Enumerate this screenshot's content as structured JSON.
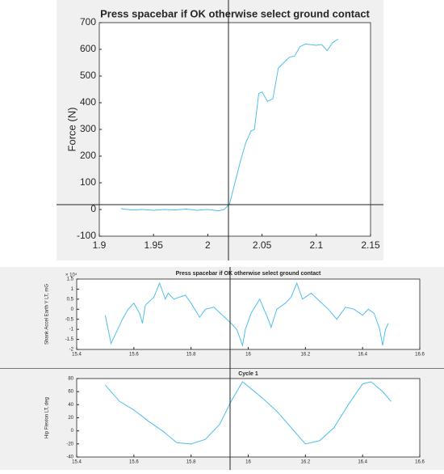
{
  "chart_data": [
    {
      "type": "line",
      "title": "Press spacebar if OK otherwise select ground contact",
      "y_label": "Force (N)",
      "x": [
        1.92,
        1.93,
        1.94,
        1.95,
        1.96,
        1.97,
        1.98,
        1.99,
        2.0,
        2.01,
        2.015,
        2.02,
        2.025,
        2.03,
        2.035,
        2.04,
        2.043,
        2.047,
        2.05,
        2.055,
        2.06,
        2.065,
        2.07,
        2.075,
        2.08,
        2.085,
        2.09,
        2.1,
        2.105,
        2.11,
        2.115,
        2.12
      ],
      "values": [
        3,
        -2,
        0,
        -3,
        0,
        -2,
        2,
        -3,
        0,
        -5,
        0,
        20,
        100,
        180,
        250,
        295,
        300,
        435,
        440,
        405,
        415,
        530,
        550,
        570,
        575,
        610,
        620,
        615,
        618,
        595,
        625,
        638
      ],
      "color": "#4dbeee",
      "xlim": [
        1.9,
        2.15
      ],
      "xticks": [
        1.9,
        1.95,
        2,
        2.05,
        2.1,
        2.15
      ],
      "ylim": [
        -100,
        700
      ],
      "yticks": [
        -100,
        0,
        100,
        200,
        300,
        400,
        500,
        600,
        700
      ]
    },
    {
      "type": "line",
      "title": "Press spacebar if OK otherwise select ground contact",
      "y_label": "Shank Accel Earth Y LT, mG",
      "y_exponent": "× 10⁴",
      "x": [
        15.5,
        15.52,
        15.56,
        15.58,
        15.6,
        15.62,
        15.63,
        15.64,
        15.67,
        15.69,
        15.71,
        15.72,
        15.74,
        15.78,
        15.8,
        15.83,
        15.85,
        15.88,
        15.91,
        15.94,
        15.96,
        15.98,
        15.99,
        16.01,
        16.04,
        16.07,
        16.08,
        16.1,
        16.13,
        16.15,
        16.17,
        16.19,
        16.22,
        16.25,
        16.28,
        16.31,
        16.34,
        16.37,
        16.4,
        16.42,
        16.44,
        16.46,
        16.47,
        16.48,
        16.49
      ],
      "values": [
        -0.3,
        -1.7,
        -0.5,
        0,
        0.3,
        -0.2,
        -0.7,
        0.2,
        0.6,
        1.3,
        0.5,
        0.8,
        0.5,
        0.7,
        0.3,
        -0.4,
        0,
        0.1,
        -0.3,
        -0.7,
        -1.0,
        -1.8,
        -1.0,
        -0.2,
        0.5,
        -0.5,
        -0.9,
        0,
        0.3,
        0.6,
        1.3,
        0.5,
        0.8,
        0.4,
        0,
        -0.5,
        0.1,
        0,
        -0.3,
        0,
        -0.2,
        -1.0,
        -1.8,
        -1.0,
        -0.7
      ],
      "color": "#4dbeee",
      "xlim": [
        15.4,
        16.6
      ],
      "xticks": [
        15.4,
        15.6,
        15.8,
        16,
        16.2,
        16.4,
        16.6
      ],
      "ylim": [
        -2,
        1.5
      ],
      "yticks": [
        -2,
        -1.5,
        -1,
        -0.5,
        0,
        0.5,
        1,
        1.5
      ]
    },
    {
      "type": "line",
      "title": "Cycle 1",
      "y_label": "Hip Flexion LT, deg",
      "x": [
        15.5,
        15.55,
        15.6,
        15.65,
        15.7,
        15.75,
        15.8,
        15.85,
        15.9,
        15.94,
        15.98,
        16.0,
        16.05,
        16.1,
        16.15,
        16.2,
        16.25,
        16.3,
        16.35,
        16.4,
        16.43,
        16.47,
        16.5
      ],
      "values": [
        70,
        45,
        32,
        15,
        0,
        -18,
        -20,
        -13,
        10,
        45,
        75,
        68,
        50,
        30,
        5,
        -20,
        -15,
        5,
        40,
        72,
        75,
        60,
        45
      ],
      "color": "#4dbeee",
      "xlim": [
        15.4,
        16.6
      ],
      "xticks": [
        15.4,
        15.6,
        15.8,
        16,
        16.2,
        16.4,
        16.6
      ],
      "ylim": [
        -40,
        80
      ],
      "yticks": [
        -40,
        -20,
        0,
        20,
        40,
        60,
        80
      ]
    }
  ]
}
